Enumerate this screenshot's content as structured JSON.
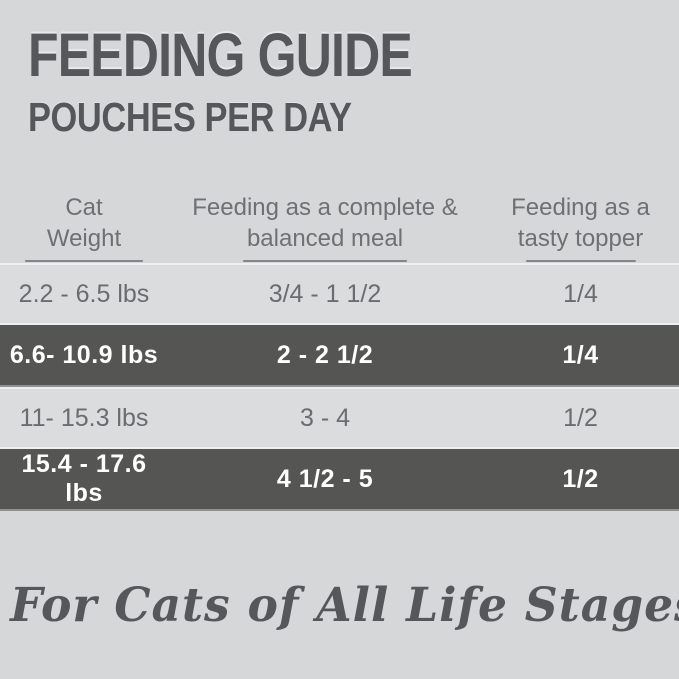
{
  "page": {
    "background_color": "#d6d7d8",
    "dark_band_color": "#555554",
    "text_color": "#56575a"
  },
  "header": {
    "title": "FEEDING GUIDE",
    "subtitle": "POUCHES PER DAY"
  },
  "table": {
    "columns": [
      {
        "line1": "Cat",
        "line2": "Weight"
      },
      {
        "line1": "Feeding as a complete &",
        "line2": "balanced meal"
      },
      {
        "line1": "Feeding as a",
        "line2": "tasty topper"
      }
    ],
    "rows": [
      {
        "weight": "2.2 - 6.5 lbs",
        "meal": "3/4 - 1 1/2",
        "topper": "1/4",
        "highlighted": false
      },
      {
        "weight": "6.6- 10.9 lbs",
        "meal": "2 - 2 1/2",
        "topper": "1/4",
        "highlighted": true
      },
      {
        "weight": "11- 15.3 lbs",
        "meal": "3 - 4",
        "topper": "1/2",
        "highlighted": false
      },
      {
        "weight": "15.4 - 17.6 lbs",
        "meal": "4 1/2 - 5",
        "topper": "1/2",
        "highlighted": true
      }
    ]
  },
  "footer": {
    "tagline": "For Cats of All Life Stages"
  }
}
